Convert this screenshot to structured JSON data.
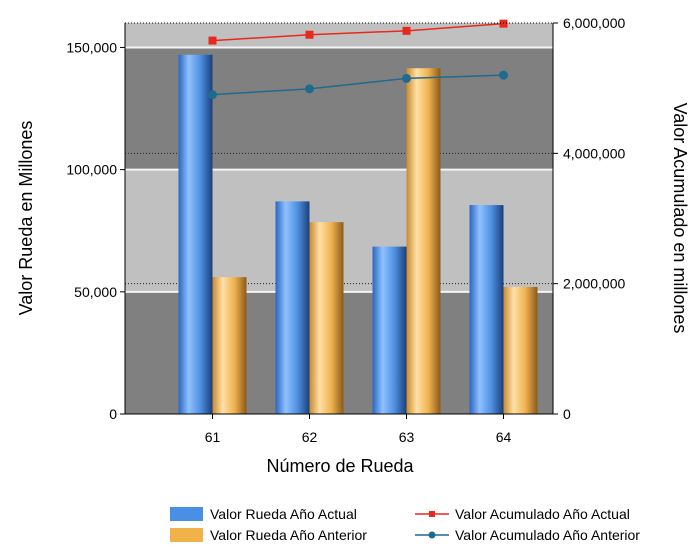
{
  "chart_data": {
    "type": "bar",
    "title": "",
    "categories": [
      "61",
      "62",
      "63",
      "64"
    ],
    "xlabel": "Número de Rueda",
    "ylabel": "Valor Rueda en Millones",
    "y2label": "Valor Acumulado en millones",
    "ylim": [
      0,
      160000
    ],
    "y2lim": [
      0,
      6000000
    ],
    "yticks": [
      0,
      50000,
      100000,
      150000
    ],
    "yticklabels": [
      "0",
      "50,000",
      "100,000",
      "150,000"
    ],
    "y2ticks": [
      0,
      2000000,
      4000000,
      6000000
    ],
    "y2ticklabels": [
      "0",
      "2,000,000",
      "4,000,000",
      "6,000,000"
    ],
    "grid": true,
    "legend_position": "bottom",
    "series": [
      {
        "name": "Valor Rueda Año Actual",
        "kind": "bar",
        "axis": "left",
        "color": "#4a8fe6",
        "values": [
          147000,
          87000,
          68500,
          85500
        ]
      },
      {
        "name": "Valor Rueda Año Anterior",
        "kind": "bar",
        "axis": "left",
        "color": "#f2b24a",
        "values": [
          56000,
          78500,
          141500,
          52000
        ]
      },
      {
        "name": "Valor Acumulado Año Actual",
        "kind": "line",
        "axis": "right",
        "color": "#e8291d",
        "marker": "square",
        "values": [
          5730000,
          5820000,
          5880000,
          5990000
        ]
      },
      {
        "name": "Valor Acumulado Año Anterior",
        "kind": "line",
        "axis": "right",
        "color": "#1f6b8e",
        "marker": "circle",
        "values": [
          4900000,
          4990000,
          5150000,
          5200000
        ]
      }
    ]
  }
}
